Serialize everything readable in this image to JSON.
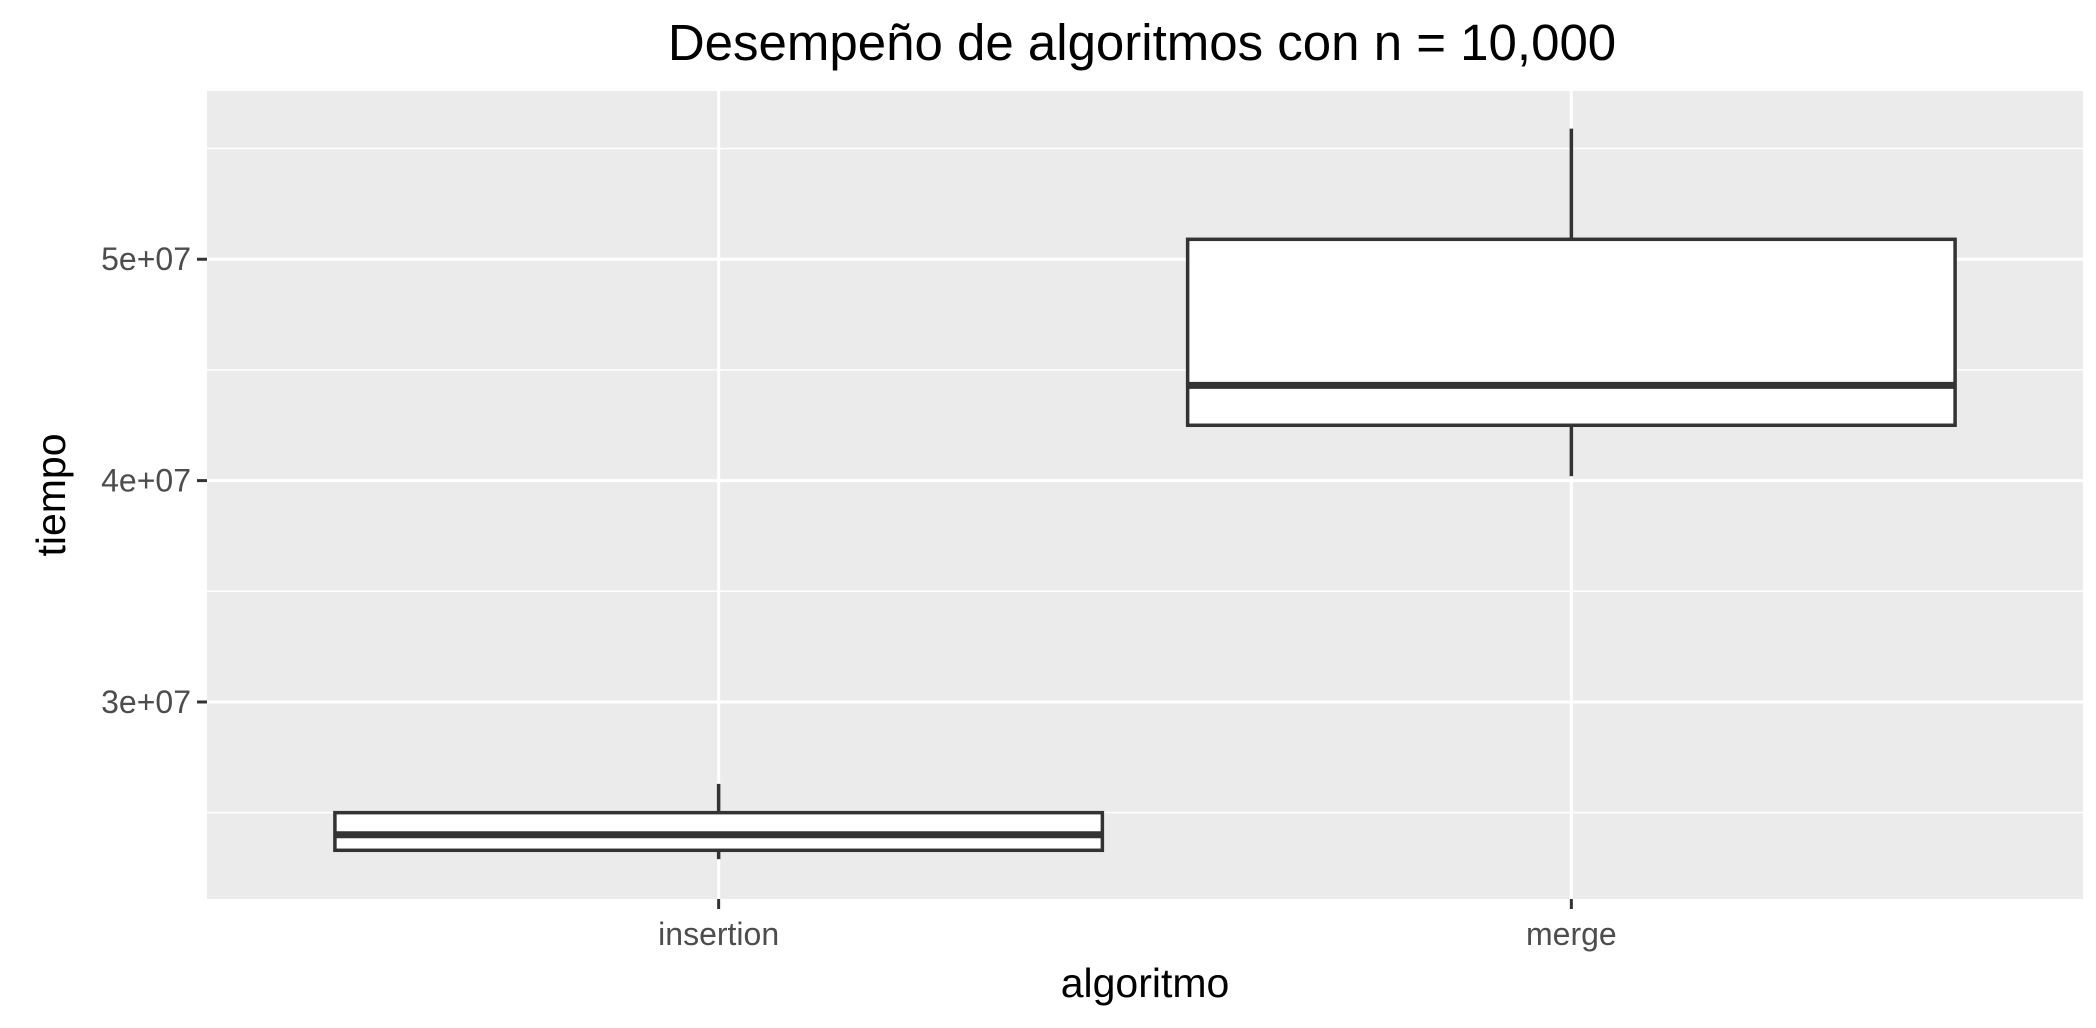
{
  "chart_data": {
    "type": "boxplot",
    "title": "Desempeño de algoritmos con n = 10,000",
    "xlabel": "algoritmo",
    "ylabel": "tiempo",
    "categories": [
      "insertion",
      "merge"
    ],
    "boxes": [
      {
        "category": "insertion",
        "min": 22900000,
        "q1": 23300000,
        "median": 24000000,
        "q3": 25000000,
        "max": 26300000
      },
      {
        "category": "merge",
        "min": 40200000,
        "q1": 42500000,
        "median": 44300000,
        "q3": 50900000,
        "max": 55900000
      }
    ],
    "ylim": [
      21100000,
      57600000
    ],
    "yticks": [
      30000000,
      40000000,
      50000000
    ],
    "ytick_labels": [
      "3e+07",
      "4e+07",
      "5e+07"
    ],
    "grid": true,
    "legend": "none",
    "colors": {
      "panel_background": "#ebebeb",
      "grid_major": "#ffffff",
      "box_fill": "#ffffff",
      "box_stroke": "#333333",
      "tick_text": "#4d4d4d",
      "tick_mark": "#333333"
    }
  }
}
